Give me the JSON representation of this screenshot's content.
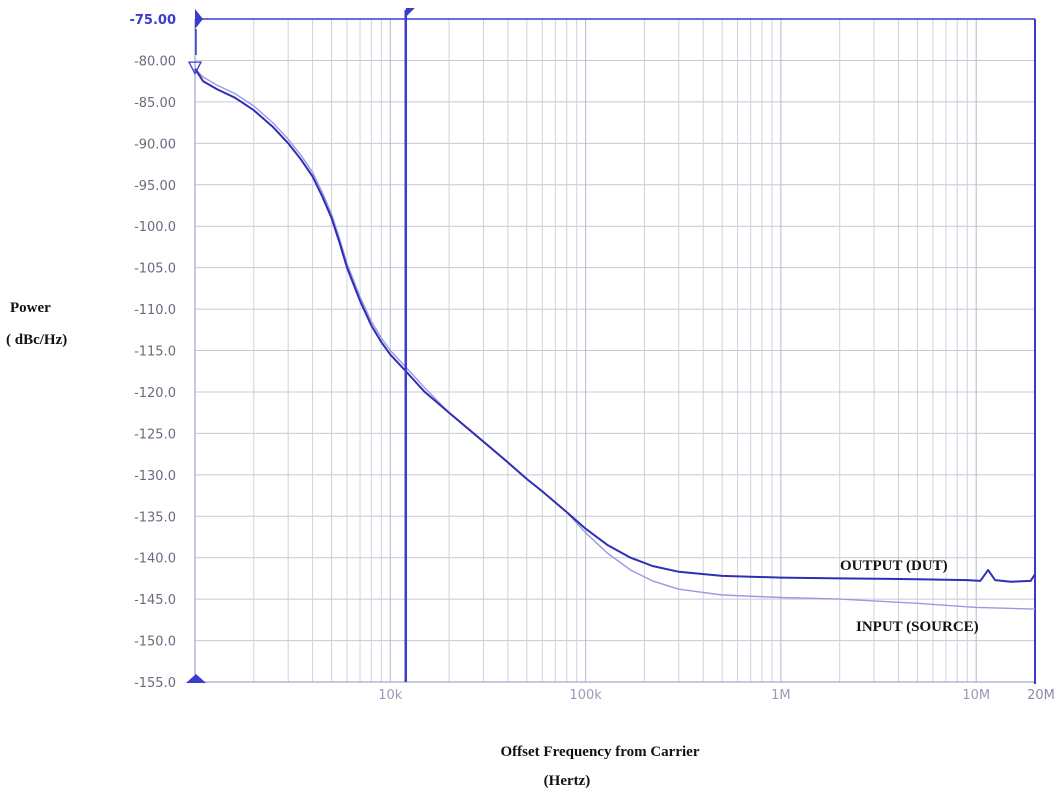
{
  "chart_data": {
    "type": "line",
    "title": "",
    "ylabel": "Power",
    "ylabel_unit": "( dBc/Hz)",
    "xlabel": "Offset Frequency from Carrier",
    "xlabel_unit": "(Hertz)",
    "x_scale": "log",
    "xlim": [
      1000,
      20000000
    ],
    "ylim": [
      -155,
      -75
    ],
    "grid": true,
    "y_ticks": [
      "-75.00",
      "-80.00",
      "-85.00",
      "-90.00",
      "-95.00",
      "-100.0",
      "-105.0",
      "-110.0",
      "-115.0",
      "-120.0",
      "-125.0",
      "-130.0",
      "-135.0",
      "-140.0",
      "-145.0",
      "-150.0",
      "-155.0"
    ],
    "x_ticks": [
      {
        "value": 10000,
        "label": "10k"
      },
      {
        "value": 100000,
        "label": "100k"
      },
      {
        "value": 1000000,
        "label": "1M"
      },
      {
        "value": 10000000,
        "label": "10M"
      },
      {
        "value": 20000000,
        "label": "20M"
      }
    ],
    "marker_x": 12000,
    "series": [
      {
        "name": "OUTPUT (DUT)",
        "color": "#2e2eb8",
        "points": [
          [
            1000,
            -81
          ],
          [
            1100,
            -82.5
          ],
          [
            1300,
            -83.5
          ],
          [
            1600,
            -84.5
          ],
          [
            2000,
            -86
          ],
          [
            2500,
            -88
          ],
          [
            3000,
            -90
          ],
          [
            3500,
            -92
          ],
          [
            4000,
            -94
          ],
          [
            4500,
            -96.5
          ],
          [
            5000,
            -99
          ],
          [
            5500,
            -102
          ],
          [
            6000,
            -105
          ],
          [
            7000,
            -109
          ],
          [
            8000,
            -112
          ],
          [
            9000,
            -114
          ],
          [
            10000,
            -115.5
          ],
          [
            12000,
            -117.5
          ],
          [
            15000,
            -120
          ],
          [
            20000,
            -122.5
          ],
          [
            30000,
            -126
          ],
          [
            40000,
            -128.5
          ],
          [
            50000,
            -130.5
          ],
          [
            60000,
            -132
          ],
          [
            80000,
            -134.5
          ],
          [
            100000,
            -136.5
          ],
          [
            130000,
            -138.5
          ],
          [
            170000,
            -140
          ],
          [
            220000,
            -141
          ],
          [
            300000,
            -141.7
          ],
          [
            500000,
            -142.2
          ],
          [
            1000000,
            -142.4
          ],
          [
            2000000,
            -142.5
          ],
          [
            5000000,
            -142.6
          ],
          [
            9000000,
            -142.7
          ],
          [
            10500000,
            -142.8
          ],
          [
            11500000,
            -141.5
          ],
          [
            12500000,
            -142.7
          ],
          [
            15000000,
            -142.9
          ],
          [
            19000000,
            -142.8
          ],
          [
            20000000,
            -142
          ]
        ]
      },
      {
        "name": "INPUT (SOURCE)",
        "color": "#9a9ae0",
        "points": [
          [
            1000,
            -81
          ],
          [
            1100,
            -82
          ],
          [
            1300,
            -83
          ],
          [
            1600,
            -84
          ],
          [
            2000,
            -85.5
          ],
          [
            2500,
            -87.5
          ],
          [
            3000,
            -89.5
          ],
          [
            3500,
            -91.5
          ],
          [
            4000,
            -93.5
          ],
          [
            4500,
            -96
          ],
          [
            5000,
            -98.5
          ],
          [
            5500,
            -101.5
          ],
          [
            6000,
            -104.5
          ],
          [
            7000,
            -108.5
          ],
          [
            8000,
            -111.5
          ],
          [
            9000,
            -113.5
          ],
          [
            10000,
            -115
          ],
          [
            12000,
            -117
          ],
          [
            15000,
            -119.5
          ],
          [
            20000,
            -122.5
          ],
          [
            30000,
            -126
          ],
          [
            40000,
            -128.5
          ],
          [
            50000,
            -130.5
          ],
          [
            60000,
            -132
          ],
          [
            80000,
            -134.5
          ],
          [
            100000,
            -137
          ],
          [
            130000,
            -139.5
          ],
          [
            170000,
            -141.5
          ],
          [
            220000,
            -142.8
          ],
          [
            300000,
            -143.8
          ],
          [
            500000,
            -144.5
          ],
          [
            1000000,
            -144.8
          ],
          [
            2000000,
            -145
          ],
          [
            5000000,
            -145.5
          ],
          [
            10000000,
            -146
          ],
          [
            20000000,
            -146.2
          ]
        ]
      }
    ]
  }
}
